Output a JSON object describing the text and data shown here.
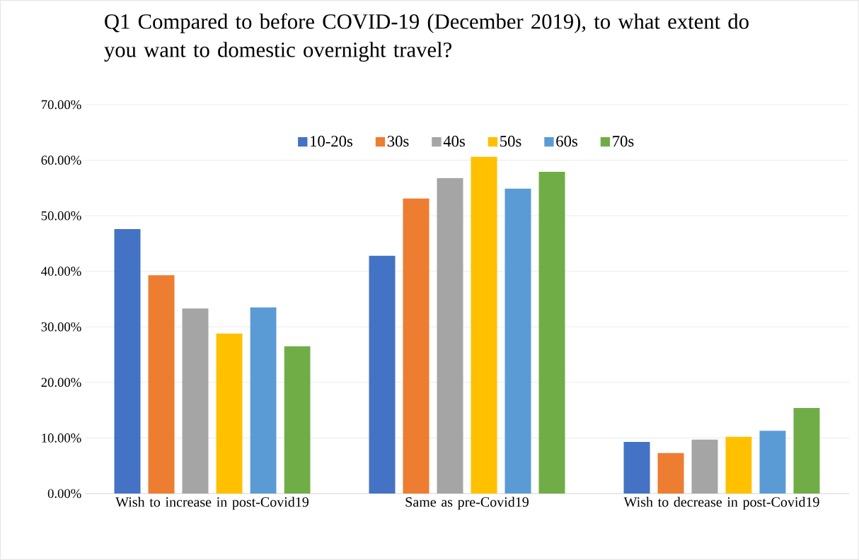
{
  "chart_data": {
    "type": "bar",
    "title": "Q1 Compared to before COVID-19 (December 2019), to what extent do you want to domestic overnight travel?",
    "categories": [
      "Wish to increase in post-Covid19",
      "Same as pre-Covid19",
      "Wish to decrease in post-Covid19"
    ],
    "series": [
      {
        "name": "10-20s",
        "color": "#4472c4",
        "values": [
          47.6,
          42.8,
          9.3
        ]
      },
      {
        "name": "30s",
        "color": "#ed7d31",
        "values": [
          39.3,
          53.1,
          7.3
        ]
      },
      {
        "name": "40s",
        "color": "#a5a5a5",
        "values": [
          33.3,
          56.8,
          9.7
        ]
      },
      {
        "name": "50s",
        "color": "#ffc000",
        "values": [
          28.8,
          60.6,
          10.2
        ]
      },
      {
        "name": "60s",
        "color": "#5b9bd5",
        "values": [
          33.5,
          54.9,
          11.3
        ]
      },
      {
        "name": "70s",
        "color": "#70ad47",
        "values": [
          26.5,
          57.9,
          15.4
        ]
      }
    ],
    "ylim": [
      0,
      70
    ],
    "yticks": [
      {
        "value": 0,
        "label": "0.00%"
      },
      {
        "value": 10,
        "label": "10.00%"
      },
      {
        "value": 20,
        "label": "20.00%"
      },
      {
        "value": 30,
        "label": "30.00%"
      },
      {
        "value": 40,
        "label": "40.00%"
      },
      {
        "value": 50,
        "label": "50.00%"
      },
      {
        "value": 60,
        "label": "60.00%"
      },
      {
        "value": 70,
        "label": "70.00%"
      }
    ],
    "grid": "y",
    "legend": "top"
  }
}
